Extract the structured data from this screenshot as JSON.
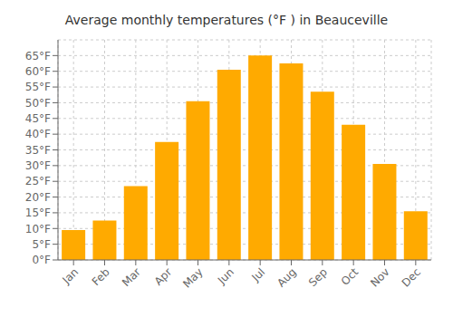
{
  "chart_data": {
    "type": "bar",
    "title": "Average monthly temperatures (°F ) in Beauceville",
    "categories": [
      "Jan",
      "Feb",
      "Mar",
      "Apr",
      "May",
      "Jun",
      "Jul",
      "Aug",
      "Sep",
      "Oct",
      "Nov",
      "Dec"
    ],
    "values": [
      9.5,
      12.5,
      23.5,
      37.5,
      50.5,
      60.5,
      65.0,
      62.5,
      53.5,
      43.0,
      30.5,
      15.5
    ],
    "color": "#FFAA00",
    "ylim": [
      0,
      70
    ],
    "yticks": [
      {
        "value": 0,
        "label": "0°F"
      },
      {
        "value": 5,
        "label": "5°F"
      },
      {
        "value": 10,
        "label": "10°F"
      },
      {
        "value": 15,
        "label": "15°F"
      },
      {
        "value": 20,
        "label": "20°F"
      },
      {
        "value": 25,
        "label": "25°F"
      },
      {
        "value": 30,
        "label": "30°F"
      },
      {
        "value": 35,
        "label": "35°F"
      },
      {
        "value": 40,
        "label": "40°F"
      },
      {
        "value": 45,
        "label": "45°F"
      },
      {
        "value": 50,
        "label": "50°F"
      },
      {
        "value": 55,
        "label": "55°F"
      },
      {
        "value": 60,
        "label": "60°F"
      },
      {
        "value": 65,
        "label": "65°F"
      }
    ],
    "grid": true
  }
}
